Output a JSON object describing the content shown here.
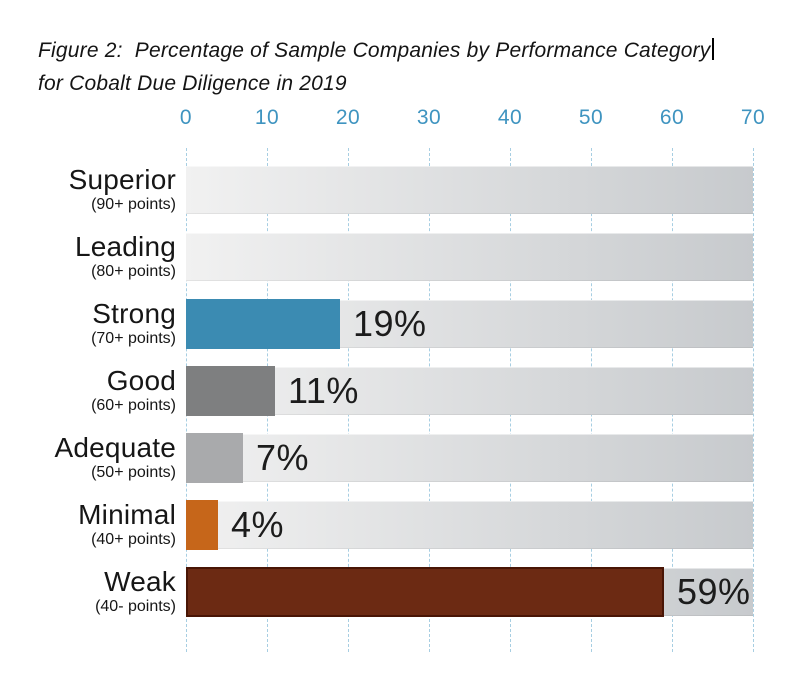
{
  "figure": {
    "title_line1": "Figure 2:  Percentage of Sample Companies by Performance Category",
    "title_line2": "for Cobalt Due Diligence in 2019"
  },
  "chart_data": {
    "type": "bar",
    "orientation": "horizontal",
    "title": "Figure 2: Percentage of Sample Companies by Performance Category for Cobalt Due Diligence in 2019",
    "xlabel": "",
    "ylabel": "",
    "xlim": [
      0,
      70
    ],
    "x_ticks": [
      0,
      10,
      20,
      30,
      40,
      50,
      60,
      70
    ],
    "grid": "vertical-dashed",
    "legend_position": "none",
    "categories": [
      "Superior",
      "Leading",
      "Strong",
      "Good",
      "Adequate",
      "Minimal",
      "Weak"
    ],
    "bars": [
      {
        "label": "Superior",
        "sublabel": "(90+ points)",
        "value": 0,
        "value_label": "",
        "color": null,
        "border_color": null
      },
      {
        "label": "Leading",
        "sublabel": "(80+ points)",
        "value": 0,
        "value_label": "",
        "color": null,
        "border_color": null
      },
      {
        "label": "Strong",
        "sublabel": "(70+ points)",
        "value": 19,
        "value_label": "19%",
        "color": "#3b8bb2",
        "border_color": null
      },
      {
        "label": "Good",
        "sublabel": "(60+ points)",
        "value": 11,
        "value_label": "11%",
        "color": "#7e7f80",
        "border_color": null
      },
      {
        "label": "Adequate",
        "sublabel": "(50+ points)",
        "value": 7,
        "value_label": "7%",
        "color": "#a9aaac",
        "border_color": null
      },
      {
        "label": "Minimal",
        "sublabel": "(40+ points)",
        "value": 4,
        "value_label": "4%",
        "color": "#c6661a",
        "border_color": null
      },
      {
        "label": "Weak",
        "sublabel": "(40- points)",
        "value": 59,
        "value_label": "59%",
        "color": "#6c2a13",
        "border_color": "#491505"
      }
    ]
  },
  "colors": {
    "background": "#ffffff",
    "title_text": "#141414",
    "axis_tick_text": "#3f94c0",
    "gridline": "#a7cee2",
    "track_left": "#f1f1f1",
    "track_right": "#c7cacd",
    "category_label_text": "#161616",
    "value_label_text": "#1c1c1c"
  }
}
